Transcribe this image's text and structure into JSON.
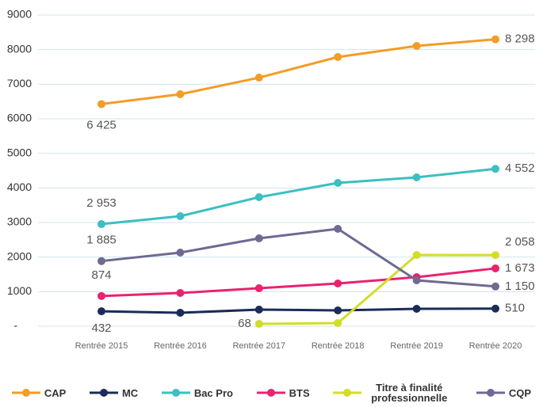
{
  "chart_data": {
    "type": "line",
    "categories": [
      "Rentrée 2015",
      "Rentrée 2016",
      "Rentrée 2017",
      "Rentrée 2018",
      "Rentrée 2019",
      "Rentrée 2020"
    ],
    "series": [
      {
        "name": "CAP",
        "color": "#f39c26",
        "values": [
          6425,
          6710,
          7190,
          7786,
          8106,
          8298
        ],
        "value_labels": [
          "6 425",
          null,
          null,
          null,
          null,
          "8 298"
        ]
      },
      {
        "name": "MC",
        "color": "#1b2b5a",
        "values": [
          432,
          389,
          481,
          458,
          504,
          510
        ],
        "value_labels": [
          "432",
          null,
          null,
          null,
          null,
          "510"
        ]
      },
      {
        "name": "Bac Pro",
        "color": "#3bbfc1",
        "values": [
          2953,
          3183,
          3733,
          4145,
          4305,
          4552
        ],
        "value_labels": [
          "2 953",
          null,
          null,
          null,
          null,
          "4 552"
        ]
      },
      {
        "name": "BTS",
        "color": "#e8236f",
        "values": [
          874,
          962,
          1099,
          1237,
          1420,
          1673
        ],
        "value_labels": [
          "874",
          null,
          null,
          null,
          null,
          "1 673"
        ]
      },
      {
        "name": "Titre à finalité professionnelle",
        "color": "#d4dc2a",
        "values": [
          null,
          null,
          68,
          92,
          2060,
          2058
        ],
        "value_labels": [
          null,
          null,
          "68",
          null,
          null,
          "2 058"
        ]
      },
      {
        "name": "CQP",
        "color": "#6e6a92",
        "values": [
          1885,
          2130,
          2542,
          2817,
          1328,
          1150
        ],
        "value_labels": [
          "1 885",
          null,
          null,
          null,
          null,
          "1 150"
        ]
      }
    ],
    "ylim": [
      0,
      9000
    ],
    "yticks": [
      {
        "value": 0,
        "label": "-"
      },
      1000,
      2000,
      3000,
      4000,
      5000,
      6000,
      7000,
      8000,
      9000
    ],
    "grid": true
  }
}
